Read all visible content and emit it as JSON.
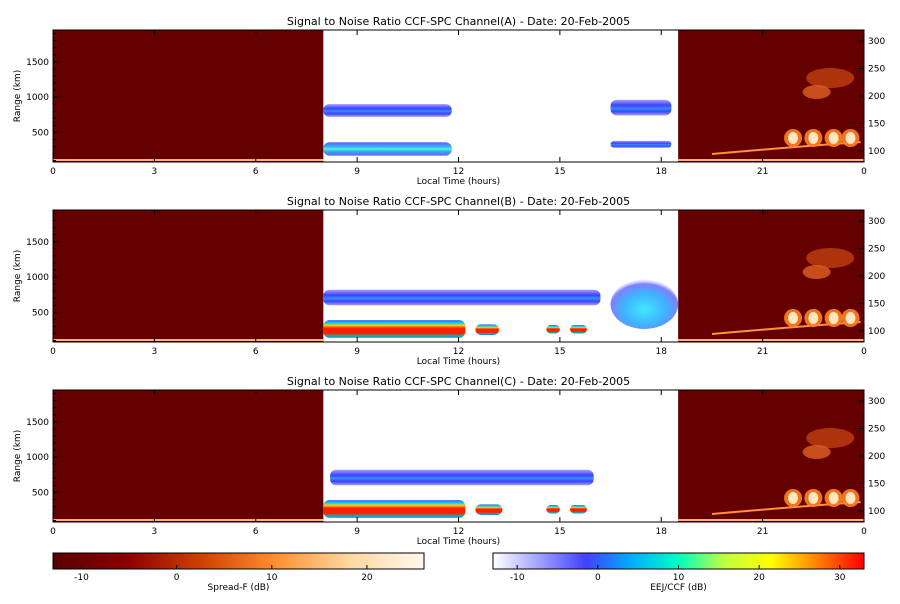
{
  "panels": [
    {
      "title": "Signal to Noise Ratio CCF-SPC Channel(A) - Date: 20-Feb-2005",
      "xlabel": "Local Time (hours)",
      "ylabel": "Range (km)",
      "x_ticks": [
        "0",
        "3",
        "6",
        "9",
        "12",
        "15",
        "18",
        "21",
        "0"
      ],
      "y_ticks": [
        "500",
        "1000",
        "1500"
      ],
      "right_ticks": [
        "100",
        "150",
        "200",
        "250",
        "300"
      ]
    },
    {
      "title": "Signal to Noise Ratio CCF-SPC Channel(B) - Date: 20-Feb-2005",
      "xlabel": "Local Time (hours)",
      "ylabel": "Range (km)",
      "x_ticks": [
        "0",
        "3",
        "6",
        "9",
        "12",
        "15",
        "18",
        "21",
        "0"
      ],
      "y_ticks": [
        "500",
        "1000",
        "1500"
      ],
      "right_ticks": [
        "100",
        "150",
        "200",
        "250",
        "300"
      ]
    },
    {
      "title": "Signal to Noise Ratio CCF-SPC Channel(C) - Date: 20-Feb-2005",
      "xlabel": "Local Time (hours)",
      "ylabel": "Range (km)",
      "x_ticks": [
        "0",
        "3",
        "6",
        "9",
        "12",
        "15",
        "18",
        "21",
        "0"
      ],
      "y_ticks": [
        "500",
        "1000",
        "1500"
      ],
      "right_ticks": [
        "100",
        "150",
        "200",
        "250",
        "300"
      ]
    }
  ],
  "colorbars": [
    {
      "label": "Spread-F (dB)",
      "ticks": [
        "-10",
        "0",
        "10",
        "20"
      ],
      "colors": [
        "#5a0000",
        "#8b0000",
        "#d04000",
        "#ff9030",
        "#ffd8a0",
        "#fff8f0"
      ]
    },
    {
      "label": "EEJ/CCF (dB)",
      "ticks": [
        "-10",
        "0",
        "10",
        "20",
        "30"
      ],
      "colors": [
        "#ffffff",
        "#a0a0ff",
        "#4040ff",
        "#00b0ff",
        "#00ffc0",
        "#c0ff40",
        "#ffff00",
        "#ff8000",
        "#ff0000"
      ]
    }
  ],
  "chart_data": [
    {
      "type": "heatmap",
      "title": "Signal to Noise Ratio CCF-SPC Channel(A) - Date: 20-Feb-2005",
      "xlabel": "Local Time (hours)",
      "ylabel": "Range (km)",
      "xlim": [
        0,
        24
      ],
      "ylim": [
        80,
        1950
      ],
      "right_ylim": [
        80,
        320
      ],
      "x_ticks": [
        0,
        3,
        6,
        9,
        12,
        15,
        18,
        21,
        24
      ],
      "y_ticks": [
        500,
        1000,
        1500
      ],
      "right_ticks": [
        100,
        150,
        200,
        250,
        300
      ],
      "spread_f_blocks": [
        [
          0,
          8
        ],
        [
          18.5,
          24
        ]
      ],
      "eej_regions": [
        {
          "t0": 8.0,
          "t1": 11.8,
          "r0": 720,
          "r1": 900,
          "level": "blue"
        },
        {
          "t0": 8.0,
          "t1": 11.8,
          "r0": 170,
          "r1": 360,
          "level": "cyan-blue"
        },
        {
          "t0": 16.5,
          "t1": 18.3,
          "r0": 740,
          "r1": 960,
          "level": "blue"
        },
        {
          "t0": 16.5,
          "t1": 18.3,
          "r0": 280,
          "r1": 380,
          "level": "blue"
        }
      ]
    },
    {
      "type": "heatmap",
      "title": "Signal to Noise Ratio CCF-SPC Channel(B) - Date: 20-Feb-2005",
      "xlabel": "Local Time (hours)",
      "ylabel": "Range (km)",
      "xlim": [
        0,
        24
      ],
      "ylim": [
        80,
        1950
      ],
      "right_ylim": [
        80,
        320
      ],
      "x_ticks": [
        0,
        3,
        6,
        9,
        12,
        15,
        18,
        21,
        24
      ],
      "y_ticks": [
        500,
        1000,
        1500
      ],
      "right_ticks": [
        100,
        150,
        200,
        250,
        300
      ],
      "spread_f_blocks": [
        [
          0,
          8
        ],
        [
          18.5,
          24
        ]
      ],
      "eej_regions": [
        {
          "t0": 8.0,
          "t1": 16.2,
          "r0": 600,
          "r1": 820,
          "level": "blue"
        },
        {
          "t0": 8.0,
          "t1": 12.2,
          "r0": 140,
          "r1": 390,
          "level": "red"
        },
        {
          "t0": 12.5,
          "t1": 13.2,
          "r0": 180,
          "r1": 330,
          "level": "red"
        },
        {
          "t0": 14.6,
          "t1": 15.0,
          "r0": 200,
          "r1": 320,
          "level": "red"
        },
        {
          "t0": 15.3,
          "t1": 15.8,
          "r0": 200,
          "r1": 320,
          "level": "red"
        },
        {
          "t0": 16.5,
          "t1": 18.5,
          "r0": 300,
          "r1": 1000,
          "level": "cyan"
        }
      ]
    },
    {
      "type": "heatmap",
      "title": "Signal to Noise Ratio CCF-SPC Channel(C) - Date: 20-Feb-2005",
      "xlabel": "Local Time (hours)",
      "ylabel": "Range (km)",
      "xlim": [
        0,
        24
      ],
      "ylim": [
        80,
        1950
      ],
      "right_ylim": [
        80,
        320
      ],
      "x_ticks": [
        0,
        3,
        6,
        9,
        12,
        15,
        18,
        21,
        24
      ],
      "y_ticks": [
        500,
        1000,
        1500
      ],
      "right_ticks": [
        100,
        150,
        200,
        250,
        300
      ],
      "spread_f_blocks": [
        [
          0,
          8
        ],
        [
          18.5,
          24
        ]
      ],
      "eej_regions": [
        {
          "t0": 8.2,
          "t1": 16.0,
          "r0": 600,
          "r1": 820,
          "level": "blue"
        },
        {
          "t0": 8.0,
          "t1": 12.2,
          "r0": 140,
          "r1": 390,
          "level": "red"
        },
        {
          "t0": 12.5,
          "t1": 13.3,
          "r0": 180,
          "r1": 330,
          "level": "red"
        },
        {
          "t0": 14.6,
          "t1": 15.0,
          "r0": 200,
          "r1": 320,
          "level": "red"
        },
        {
          "t0": 15.3,
          "t1": 15.8,
          "r0": 200,
          "r1": 320,
          "level": "red"
        }
      ]
    }
  ]
}
